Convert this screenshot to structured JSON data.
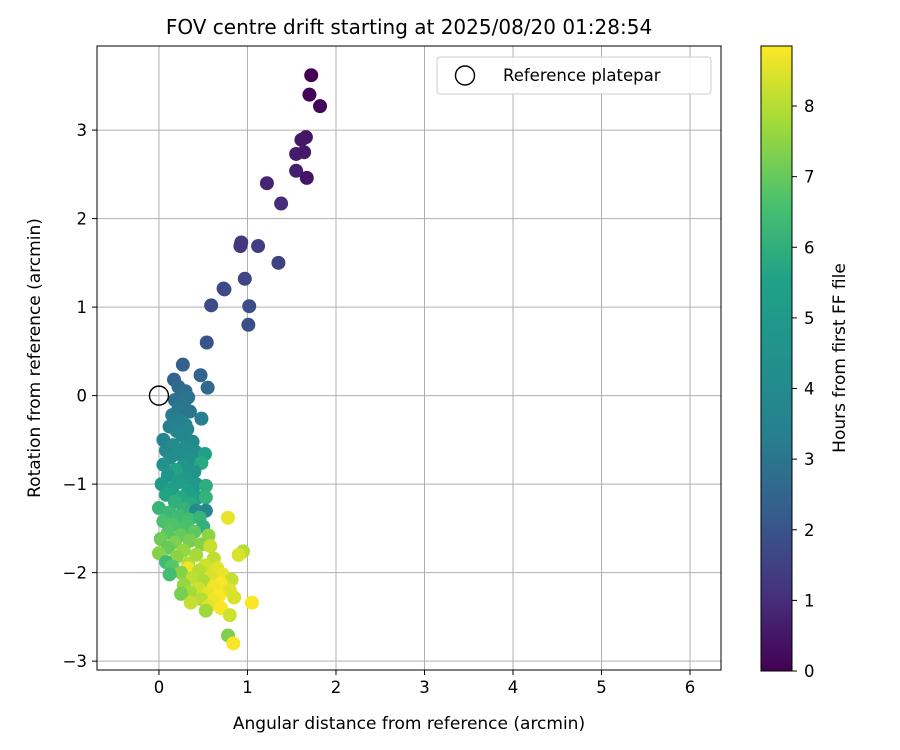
{
  "chart_data": {
    "type": "scatter",
    "title": "FOV centre drift starting at 2025/08/20 01:28:54",
    "xlabel": "Angular distance from reference (arcmin)",
    "ylabel": "Rotation from reference (arcmin)",
    "xlim": [
      -0.7,
      6.35
    ],
    "ylim": [
      -3.1,
      3.95
    ],
    "xticks": [
      0,
      1,
      2,
      3,
      4,
      5,
      6
    ],
    "yticks": [
      -3,
      -2,
      -1,
      0,
      1,
      2,
      3
    ],
    "grid": true,
    "colormap": "viridis",
    "legend": {
      "entries": [
        "Reference platepar"
      ],
      "placement": "top-right"
    },
    "colorbar": {
      "label": "Hours from first FF file",
      "range": [
        0,
        8.85
      ],
      "ticks": [
        0,
        1,
        2,
        3,
        4,
        5,
        6,
        7,
        8
      ]
    },
    "reference_point": {
      "x": 0,
      "y": 0,
      "name": "Reference platepar"
    },
    "points": [
      {
        "x": 1.72,
        "y": 3.62,
        "h": 0.0
      },
      {
        "x": 1.7,
        "y": 3.4,
        "h": 0.1
      },
      {
        "x": 1.82,
        "y": 3.27,
        "h": 0.15
      },
      {
        "x": 1.66,
        "y": 2.92,
        "h": 0.4
      },
      {
        "x": 1.61,
        "y": 2.89,
        "h": 0.5
      },
      {
        "x": 1.55,
        "y": 2.73,
        "h": 0.6
      },
      {
        "x": 1.64,
        "y": 2.75,
        "h": 0.55
      },
      {
        "x": 1.55,
        "y": 2.54,
        "h": 0.7
      },
      {
        "x": 1.67,
        "y": 2.46,
        "h": 0.45
      },
      {
        "x": 1.22,
        "y": 2.4,
        "h": 0.8
      },
      {
        "x": 1.38,
        "y": 2.17,
        "h": 1.0
      },
      {
        "x": 0.93,
        "y": 1.73,
        "h": 1.3
      },
      {
        "x": 0.92,
        "y": 1.69,
        "h": 1.25
      },
      {
        "x": 1.12,
        "y": 1.69,
        "h": 1.4
      },
      {
        "x": 1.35,
        "y": 1.5,
        "h": 1.5
      },
      {
        "x": 0.97,
        "y": 1.32,
        "h": 1.6
      },
      {
        "x": 0.73,
        "y": 1.21,
        "h": 1.7
      },
      {
        "x": 0.74,
        "y": 1.2,
        "h": 1.75
      },
      {
        "x": 0.59,
        "y": 1.02,
        "h": 1.8
      },
      {
        "x": 1.02,
        "y": 1.01,
        "h": 1.85
      },
      {
        "x": 1.01,
        "y": 0.8,
        "h": 1.9
      },
      {
        "x": 0.54,
        "y": 0.6,
        "h": 2.0
      },
      {
        "x": 0.27,
        "y": 0.35,
        "h": 2.3
      },
      {
        "x": 0.47,
        "y": 0.23,
        "h": 2.5
      },
      {
        "x": 0.17,
        "y": 0.18,
        "h": 2.4
      },
      {
        "x": 0.55,
        "y": 0.09,
        "h": 2.6
      },
      {
        "x": 0.22,
        "y": 0.1,
        "h": 2.6
      },
      {
        "x": 0.3,
        "y": 0.05,
        "h": 2.7
      },
      {
        "x": 0.25,
        "y": 0.0,
        "h": 2.8
      },
      {
        "x": 0.33,
        "y": -0.02,
        "h": 2.9
      },
      {
        "x": 0.18,
        "y": -0.05,
        "h": 2.85
      },
      {
        "x": 0.28,
        "y": -0.1,
        "h": 3.0
      },
      {
        "x": 0.22,
        "y": -0.15,
        "h": 3.1
      },
      {
        "x": 0.35,
        "y": -0.18,
        "h": 3.0
      },
      {
        "x": 0.15,
        "y": -0.22,
        "h": 3.2
      },
      {
        "x": 0.48,
        "y": -0.26,
        "h": 3.3
      },
      {
        "x": 0.25,
        "y": -0.28,
        "h": 3.4
      },
      {
        "x": 0.3,
        "y": -0.33,
        "h": 3.5
      },
      {
        "x": 0.12,
        "y": -0.35,
        "h": 3.4
      },
      {
        "x": 0.2,
        "y": -0.4,
        "h": 3.6
      },
      {
        "x": 0.32,
        "y": -0.38,
        "h": 3.7
      },
      {
        "x": 0.26,
        "y": -0.45,
        "h": 3.8
      },
      {
        "x": 0.05,
        "y": -0.5,
        "h": 3.6
      },
      {
        "x": 0.38,
        "y": -0.52,
        "h": 3.9
      },
      {
        "x": 0.16,
        "y": -0.56,
        "h": 4.0
      },
      {
        "x": 0.3,
        "y": -0.58,
        "h": 4.1
      },
      {
        "x": 0.08,
        "y": -0.62,
        "h": 3.9
      },
      {
        "x": 0.42,
        "y": -0.64,
        "h": 4.2
      },
      {
        "x": 0.22,
        "y": -0.66,
        "h": 4.3
      },
      {
        "x": 0.52,
        "y": -0.66,
        "h": 5.5
      },
      {
        "x": 0.13,
        "y": -0.7,
        "h": 4.2
      },
      {
        "x": 0.35,
        "y": -0.72,
        "h": 4.4
      },
      {
        "x": 0.48,
        "y": -0.76,
        "h": 5.8
      },
      {
        "x": 0.05,
        "y": -0.78,
        "h": 4.5
      },
      {
        "x": 0.27,
        "y": -0.8,
        "h": 4.6
      },
      {
        "x": 0.19,
        "y": -0.84,
        "h": 5.6
      },
      {
        "x": 0.4,
        "y": -0.86,
        "h": 4.7
      },
      {
        "x": 0.1,
        "y": -0.9,
        "h": 4.8
      },
      {
        "x": 0.3,
        "y": -0.93,
        "h": 5.0
      },
      {
        "x": 0.22,
        "y": -0.98,
        "h": 5.2
      },
      {
        "x": 0.03,
        "y": -1.0,
        "h": 5.0
      },
      {
        "x": 0.42,
        "y": -1.0,
        "h": 4.9
      },
      {
        "x": 0.53,
        "y": -1.02,
        "h": 5.9
      },
      {
        "x": 0.15,
        "y": -1.05,
        "h": 5.4
      },
      {
        "x": 0.33,
        "y": -1.08,
        "h": 5.3
      },
      {
        "x": 0.08,
        "y": -1.12,
        "h": 5.6
      },
      {
        "x": 0.25,
        "y": -1.15,
        "h": 5.7
      },
      {
        "x": 0.44,
        "y": -1.15,
        "h": 5.5
      },
      {
        "x": 0.53,
        "y": -1.15,
        "h": 6.1
      },
      {
        "x": 0.18,
        "y": -1.2,
        "h": 6.0
      },
      {
        "x": 0.36,
        "y": -1.22,
        "h": 5.8
      },
      {
        "x": 0.0,
        "y": -1.27,
        "h": 6.2
      },
      {
        "x": 0.28,
        "y": -1.28,
        "h": 6.1
      },
      {
        "x": 0.12,
        "y": -1.32,
        "h": 6.3
      },
      {
        "x": 0.42,
        "y": -1.3,
        "h": 4.0
      },
      {
        "x": 0.53,
        "y": -1.3,
        "h": 3.8
      },
      {
        "x": 0.22,
        "y": -1.36,
        "h": 6.4
      },
      {
        "x": 0.34,
        "y": -1.4,
        "h": 6.5
      },
      {
        "x": 0.46,
        "y": -1.38,
        "h": 6.2
      },
      {
        "x": 0.78,
        "y": -1.38,
        "h": 8.6
      },
      {
        "x": 0.05,
        "y": -1.42,
        "h": 6.6
      },
      {
        "x": 0.16,
        "y": -1.46,
        "h": 6.7
      },
      {
        "x": 0.3,
        "y": -1.48,
        "h": 6.6
      },
      {
        "x": 0.5,
        "y": -1.48,
        "h": 6.0
      },
      {
        "x": 0.4,
        "y": -1.54,
        "h": 6.9
      },
      {
        "x": 0.1,
        "y": -1.55,
        "h": 6.8
      },
      {
        "x": 0.25,
        "y": -1.58,
        "h": 7.0
      },
      {
        "x": 0.56,
        "y": -1.58,
        "h": 7.5
      },
      {
        "x": 0.02,
        "y": -1.62,
        "h": 7.1
      },
      {
        "x": 0.35,
        "y": -1.64,
        "h": 7.2
      },
      {
        "x": 0.18,
        "y": -1.66,
        "h": 7.3
      },
      {
        "x": 0.48,
        "y": -1.68,
        "h": 7.4
      },
      {
        "x": 0.58,
        "y": -1.7,
        "h": 8.2
      },
      {
        "x": 0.1,
        "y": -1.72,
        "h": 7.0
      },
      {
        "x": 0.28,
        "y": -1.75,
        "h": 7.6
      },
      {
        "x": 0.0,
        "y": -1.78,
        "h": 7.4
      },
      {
        "x": 0.95,
        "y": -1.76,
        "h": 8.0
      },
      {
        "x": 0.9,
        "y": -1.8,
        "h": 8.4
      },
      {
        "x": 0.42,
        "y": -1.8,
        "h": 7.8
      },
      {
        "x": 0.2,
        "y": -1.82,
        "h": 7.5
      },
      {
        "x": 0.62,
        "y": -1.84,
        "h": 8.1
      },
      {
        "x": 0.08,
        "y": -1.88,
        "h": 6.4
      },
      {
        "x": 0.33,
        "y": -1.9,
        "h": 7.9
      },
      {
        "x": 0.52,
        "y": -1.92,
        "h": 8.3
      },
      {
        "x": 0.15,
        "y": -1.93,
        "h": 6.8
      },
      {
        "x": 0.33,
        "y": -1.95,
        "h": 8.7
      },
      {
        "x": 0.66,
        "y": -1.95,
        "h": 8.5
      },
      {
        "x": 0.45,
        "y": -1.98,
        "h": 8.0
      },
      {
        "x": 0.25,
        "y": -2.0,
        "h": 7.4
      },
      {
        "x": 0.12,
        "y": -2.02,
        "h": 6.5
      },
      {
        "x": 0.72,
        "y": -2.02,
        "h": 8.6
      },
      {
        "x": 0.58,
        "y": -2.05,
        "h": 8.4
      },
      {
        "x": 0.38,
        "y": -2.06,
        "h": 8.1
      },
      {
        "x": 0.82,
        "y": -2.08,
        "h": 8.2
      },
      {
        "x": 0.5,
        "y": -2.1,
        "h": 7.9
      },
      {
        "x": 0.7,
        "y": -2.12,
        "h": 8.8
      },
      {
        "x": 0.28,
        "y": -2.14,
        "h": 7.6
      },
      {
        "x": 0.62,
        "y": -2.16,
        "h": 8.7
      },
      {
        "x": 0.45,
        "y": -2.18,
        "h": 8.3
      },
      {
        "x": 0.8,
        "y": -2.2,
        "h": 8.5
      },
      {
        "x": 0.35,
        "y": -2.22,
        "h": 7.8
      },
      {
        "x": 0.25,
        "y": -2.24,
        "h": 7.2
      },
      {
        "x": 0.56,
        "y": -2.24,
        "h": 8.6
      },
      {
        "x": 0.68,
        "y": -2.26,
        "h": 8.8
      },
      {
        "x": 0.85,
        "y": -2.28,
        "h": 8.4
      },
      {
        "x": 0.48,
        "y": -2.3,
        "h": 8.0
      },
      {
        "x": 0.62,
        "y": -2.32,
        "h": 8.7
      },
      {
        "x": 0.36,
        "y": -2.34,
        "h": 8.2
      },
      {
        "x": 1.05,
        "y": -2.34,
        "h": 8.8
      },
      {
        "x": 0.56,
        "y": -2.38,
        "h": 8.5
      },
      {
        "x": 0.7,
        "y": -2.4,
        "h": 8.8
      },
      {
        "x": 0.53,
        "y": -2.43,
        "h": 7.7
      },
      {
        "x": 0.8,
        "y": -2.48,
        "h": 8.3
      },
      {
        "x": 0.78,
        "y": -2.71,
        "h": 7.3
      },
      {
        "x": 0.84,
        "y": -2.8,
        "h": 8.8
      }
    ]
  }
}
